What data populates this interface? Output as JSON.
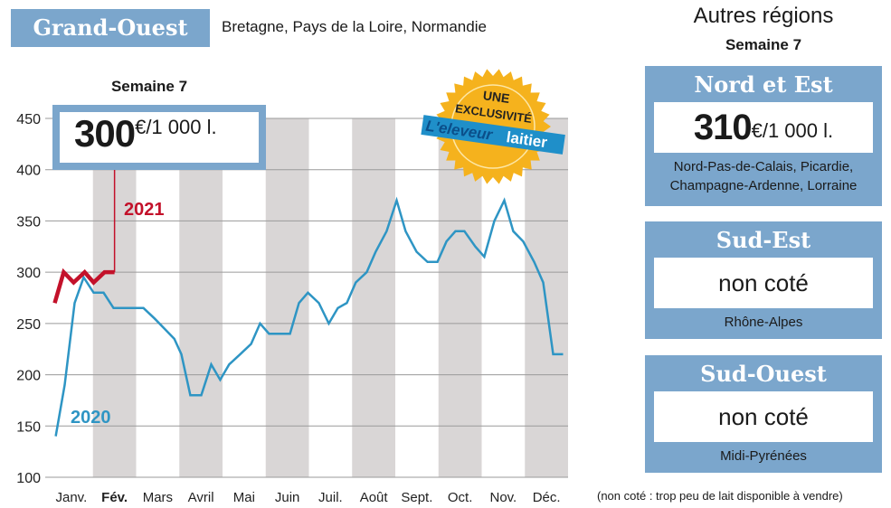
{
  "header": {
    "title": "Grand-Ouest",
    "subtitle": "Bretagne, Pays de la Loire, Normandie",
    "week": "Semaine 7"
  },
  "main_price": {
    "value": "300",
    "unit": "€/1 000 l."
  },
  "badge": {
    "line1": "UNE",
    "line2": "EXCLUSIVITÉ",
    "brand1": "L'eleveur",
    "brand2": "laitier"
  },
  "others": {
    "title": "Autres régions",
    "week": "Semaine 7",
    "regions": [
      {
        "name": "Nord et Est",
        "price": "310",
        "unit": "€/1 000 l.",
        "areas": [
          "Nord-Pas-de-Calais, Picardie,",
          "Champagne-Ardenne, Lorraine"
        ]
      },
      {
        "name": "Sud-Est",
        "price": "non coté",
        "areas": [
          "Rhône-Alpes"
        ]
      },
      {
        "name": "Sud-Ouest",
        "price": "non coté",
        "areas": [
          "Midi-Pyrénées"
        ]
      }
    ],
    "footnote": "(non coté : trop peu de lait disponible à vendre)"
  },
  "colors": {
    "frame": "#7ba6cc",
    "band": "#d9d6d6",
    "s2020": "#2e95c4",
    "s2021": "#c3112a",
    "badge": "#f5b21d"
  },
  "chart_data": {
    "type": "line",
    "ylabel": "€/1 000 l.",
    "xlabel": "",
    "ylim": [
      100,
      450
    ],
    "xlim_weeks": [
      0,
      52
    ],
    "yticks": [
      100,
      150,
      200,
      250,
      300,
      350,
      400,
      450
    ],
    "months": [
      "Janv.",
      "Fév.",
      "Mars",
      "Avril",
      "Mai",
      "Juin",
      "Juil.",
      "Août",
      "Sept.",
      "Oct.",
      "Nov.",
      "Déc."
    ],
    "highlight_month": 1,
    "series": [
      {
        "name": "2020",
        "x": [
          0.6,
          1.5,
          2.5,
          3.4,
          4.4,
          5.4,
          6.4,
          9.4,
          10.5,
          11.5,
          12.5,
          13.2,
          14.1,
          15.2,
          16.2,
          17.1,
          18,
          19.1,
          20.2,
          21.1,
          22,
          24.1,
          25,
          25.9,
          27,
          28,
          28.9,
          29.8,
          30.7,
          31.8,
          32.7,
          33.8,
          34.8,
          35.7,
          36.8,
          37.9,
          38.9,
          39.8,
          40.7,
          41.6,
          42.7,
          43.6,
          44.6,
          45.6,
          46.5,
          47.5,
          48.6,
          49.5,
          50.5,
          51.5
        ],
        "values": [
          140,
          190,
          270,
          295,
          280,
          280,
          265,
          265,
          255,
          245,
          235,
          220,
          180,
          180,
          210,
          195,
          210,
          220,
          230,
          250,
          240,
          240,
          270,
          280,
          270,
          250,
          265,
          270,
          290,
          300,
          320,
          340,
          370,
          340,
          320,
          310,
          310,
          330,
          340,
          340,
          325,
          315,
          350,
          370,
          340,
          330,
          310,
          290,
          220,
          220
        ]
      },
      {
        "name": "2021",
        "x": [
          0.5,
          1.4,
          2.4,
          3.5,
          4.4,
          5.5,
          6.5
        ],
        "values": [
          270,
          300,
          290,
          300,
          290,
          300,
          300
        ]
      }
    ]
  }
}
